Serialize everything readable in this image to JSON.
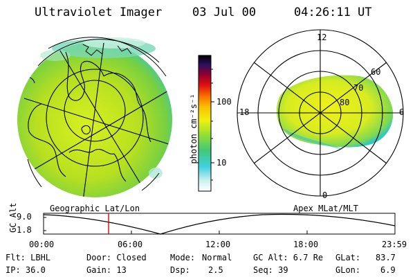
{
  "header": {
    "title": "Ultraviolet Imager",
    "date": "03 Jul 00",
    "time": "04:26:11 UT"
  },
  "colorbar": {
    "unit_label": "photon cm⁻²s⁻¹",
    "ticks": [
      "100",
      "10"
    ]
  },
  "polar_plot": {
    "labels": {
      "top": "12",
      "bottom": "0",
      "left": "18",
      "right": "6"
    },
    "lat_labels": [
      "60",
      "70",
      "80"
    ]
  },
  "timeline": {
    "left_title": "Geographic Lat/Lon",
    "right_title": "Apex MLat/MLT",
    "ylabel": "GC Alt",
    "ymax": "9.0",
    "ymin": "1.8",
    "xticks": [
      "00:00",
      "06:00",
      "12:00",
      "18:00",
      "23:59"
    ],
    "marker_time_hours": 4.436
  },
  "info": {
    "row1": {
      "flt": "Flt: LBHL",
      "door": "Door: Closed",
      "mode_label": "Mode:",
      "mode_value": "Normal",
      "gcalt": "GC Alt: 6.7 Re",
      "glat_label": "GLat:",
      "glat_value": "83.7"
    },
    "row2": {
      "ip": "IP: 36.0",
      "gain": "Gain: 13",
      "dsp_label": "Dsp:",
      "dsp_value": "2.5",
      "seq": "Seq: 39",
      "glon_label": "GLon:",
      "glon_value": "6.9"
    }
  }
}
